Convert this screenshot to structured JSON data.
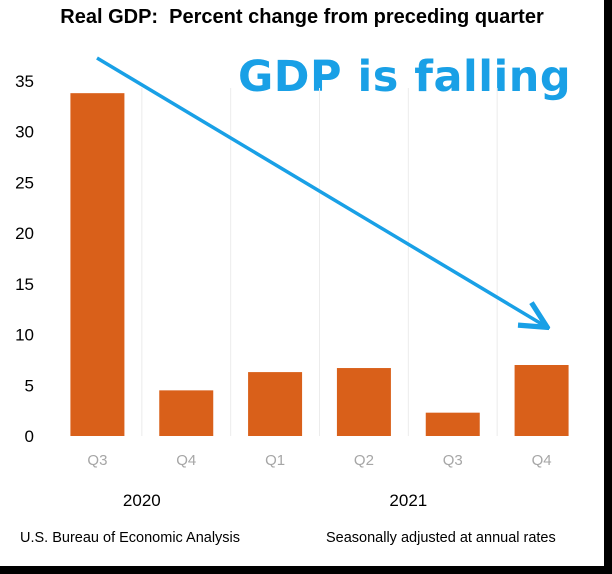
{
  "chart_data": {
    "type": "bar",
    "title": "Real GDP:  Percent change from preceding quarter",
    "categories": [
      "Q3",
      "Q4",
      "Q1",
      "Q2",
      "Q3",
      "Q4"
    ],
    "groups": [
      {
        "label": "2020",
        "quarters": [
          "Q3",
          "Q4"
        ]
      },
      {
        "label": "2021",
        "quarters": [
          "Q1",
          "Q2",
          "Q3",
          "Q4"
        ]
      }
    ],
    "values": [
      33.8,
      4.5,
      6.3,
      6.7,
      2.3,
      7.0
    ],
    "ylim": [
      0,
      35
    ],
    "yticks": [
      0,
      5,
      10,
      15,
      20,
      25,
      30,
      35
    ],
    "grid": false,
    "bar_color": "#d9601a",
    "annotation": {
      "text": "GDP is falling",
      "color": "#19a0e6"
    },
    "source": "U.S. Bureau of Economic Analysis",
    "note": "Seasonally adjusted at annual rates"
  }
}
